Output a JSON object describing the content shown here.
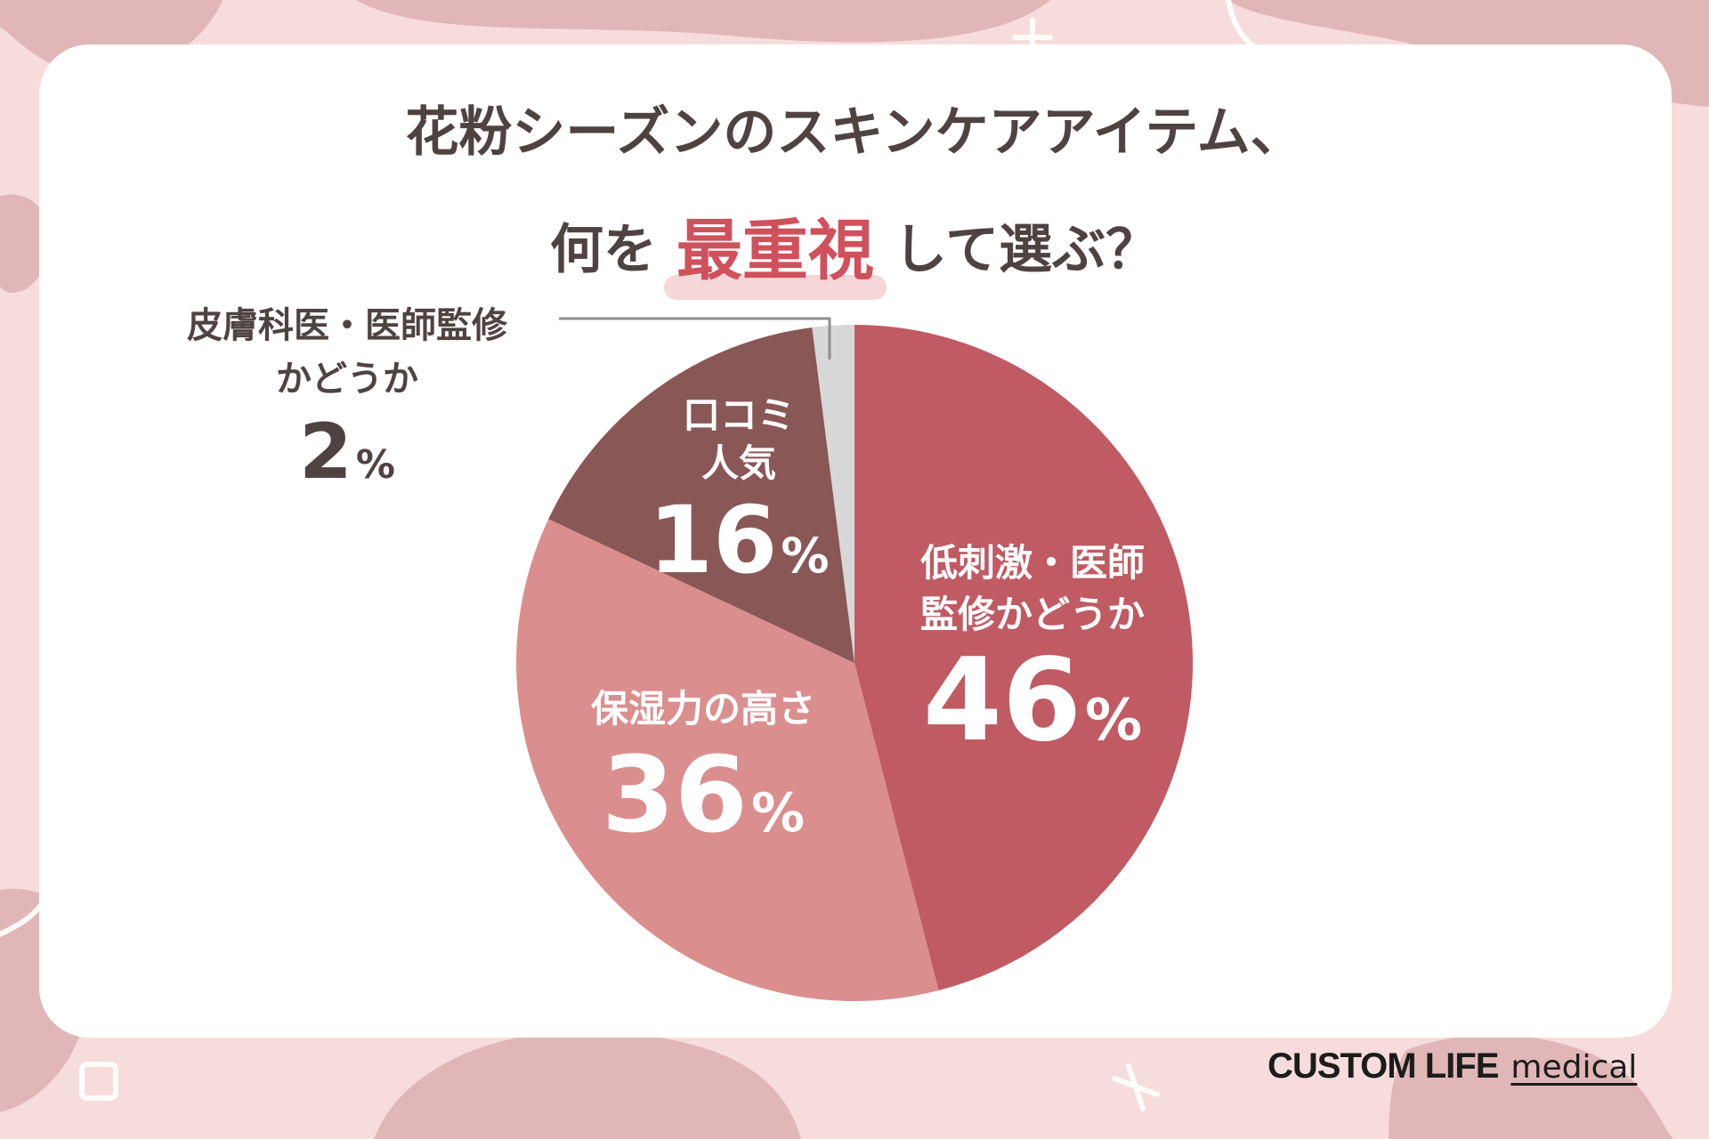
{
  "title": {
    "line1": "花粉シーズンのスキンケアアイテム、",
    "line2_before": "何を",
    "line2_emphasis": "最重視",
    "line2_after": "して選ぶ？"
  },
  "chart_data": {
    "type": "pie",
    "start_angle_deg": 0,
    "direction": "clockwise",
    "slices": [
      {
        "label_line1": "低刺激・医師",
        "label_line2": "監修かどうか",
        "value": 46,
        "unit": "%",
        "color": "#c05a63"
      },
      {
        "label_line1": "保湿力の高さ",
        "label_line2": "",
        "value": 36,
        "unit": "%",
        "color": "#db8e8e"
      },
      {
        "label_line1": "口コミ",
        "label_line2": "人気",
        "value": 16,
        "unit": "%",
        "color": "#8a5757"
      },
      {
        "label_line1": "皮膚科医・医師監修",
        "label_line2": "かどうか",
        "value": 2,
        "unit": "%",
        "color": "#d7d7d7"
      }
    ],
    "leader_line_color": "#8f8f8f"
  },
  "logo": {
    "main": "CUSTOM LIFE",
    "sub": "medical"
  },
  "colors": {
    "background": "#f7dcdc",
    "title_text": "#4f4342",
    "emphasis_text": "#d0505c",
    "emphasis_underline": "#f6d6d7"
  }
}
